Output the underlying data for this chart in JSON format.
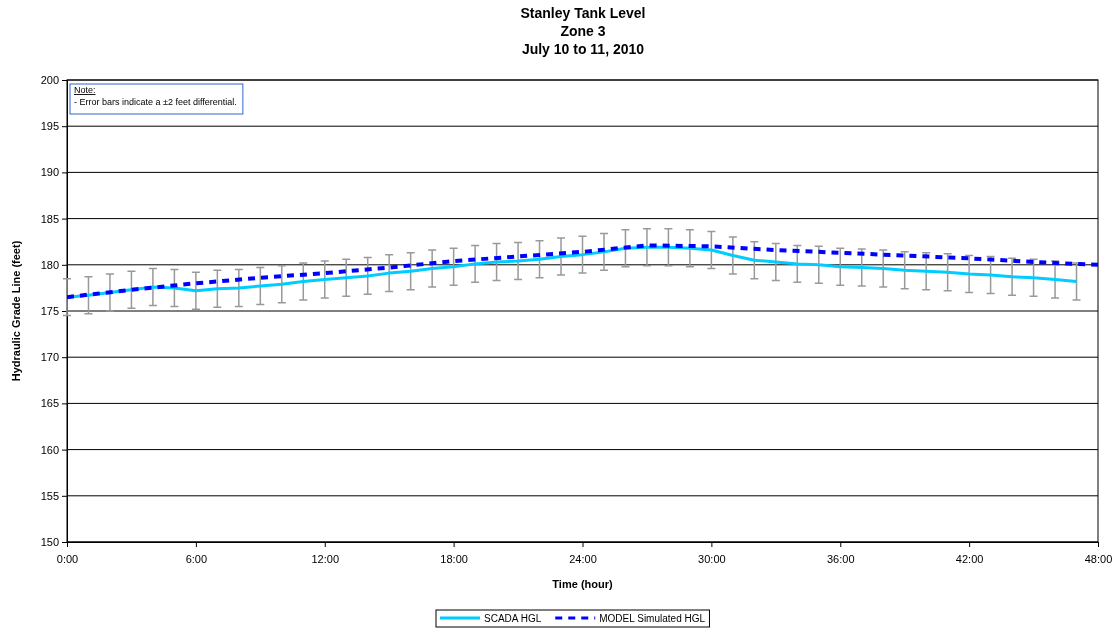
{
  "chart_data": {
    "type": "line",
    "title": "Stanley Tank Level\nZone 3\nJuly 10 to 11, 2010",
    "xlabel": "Time (hour)",
    "ylabel": "Hydraulic Grade Line (feet)",
    "xlim": [
      0,
      48
    ],
    "xticks": [
      {
        "value": 0,
        "label": "0:00"
      },
      {
        "value": 6,
        "label": "6:00"
      },
      {
        "value": 12,
        "label": "12:00"
      },
      {
        "value": 18,
        "label": "18:00"
      },
      {
        "value": 24,
        "label": "24:00"
      },
      {
        "value": 30,
        "label": "30:00"
      },
      {
        "value": 36,
        "label": "36:00"
      },
      {
        "value": 42,
        "label": "42:00"
      },
      {
        "value": 48,
        "label": "48:00"
      }
    ],
    "ylim": [
      150,
      200
    ],
    "yticks": [
      150,
      155,
      160,
      165,
      170,
      175,
      180,
      185,
      190,
      195,
      200
    ],
    "grid": "y",
    "legend": "bottom",
    "annotations": [
      "Note:\n- Error bars indicate a ±2 feet differential."
    ],
    "series": [
      {
        "name": "SCADA HGL",
        "color": "#00ccff",
        "line_style": "solid",
        "x": [
          0,
          1,
          2,
          3,
          4,
          5,
          6,
          7,
          8,
          9,
          10,
          11,
          12,
          13,
          14,
          15,
          16,
          17,
          18,
          19,
          20,
          21,
          22,
          23,
          24,
          25,
          26,
          27,
          28,
          29,
          30,
          31,
          32,
          33,
          34,
          35,
          36,
          37,
          38,
          39,
          40,
          41,
          42,
          43,
          44,
          45,
          46,
          47
        ],
        "values": [
          176.5,
          176.7,
          177.0,
          177.3,
          177.6,
          177.5,
          177.2,
          177.4,
          177.5,
          177.7,
          177.9,
          178.2,
          178.4,
          178.6,
          178.8,
          179.1,
          179.3,
          179.6,
          179.8,
          180.1,
          180.3,
          180.4,
          180.6,
          180.9,
          181.1,
          181.4,
          181.8,
          181.9,
          181.9,
          181.8,
          181.6,
          181.0,
          180.5,
          180.3,
          180.1,
          180.0,
          179.8,
          179.7,
          179.6,
          179.4,
          179.3,
          179.2,
          179.0,
          178.9,
          178.7,
          178.6,
          178.4,
          178.2
        ],
        "errors": [
          2,
          2,
          2,
          2,
          2,
          2,
          2,
          2,
          2,
          2,
          2,
          2,
          2,
          2,
          2,
          2,
          2,
          2,
          2,
          2,
          2,
          2,
          2,
          2,
          2,
          2,
          2,
          2,
          2,
          2,
          2,
          2,
          2,
          2,
          2,
          2,
          2,
          2,
          2,
          2,
          2,
          2,
          2,
          2,
          2,
          2,
          2,
          2
        ]
      },
      {
        "name": "MODEL Simulated HGL",
        "color": "#0000ff",
        "line_style": "dashed",
        "x": [
          0,
          3,
          6,
          9,
          12,
          15,
          18,
          21,
          24,
          27,
          30,
          33,
          36,
          39,
          42,
          45,
          48
        ],
        "values": [
          176.5,
          177.3,
          178.0,
          178.6,
          179.1,
          179.7,
          180.4,
          180.9,
          181.4,
          182.1,
          182.0,
          181.6,
          181.3,
          181.0,
          180.7,
          180.3,
          180.0
        ]
      }
    ]
  }
}
